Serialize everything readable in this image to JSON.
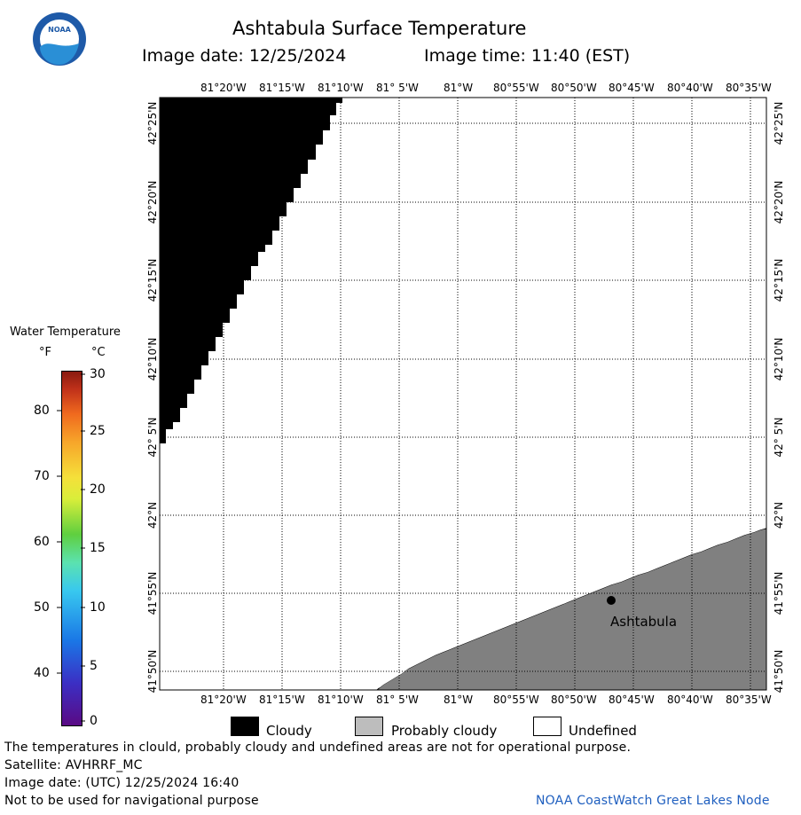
{
  "header": {
    "title": "Ashtabula Surface Temperature",
    "image_date": "Image date: 12/25/2024",
    "image_time": "Image time: 11:40 (EST)"
  },
  "map": {
    "lon_labels": [
      "81°20'W",
      "81°15'W",
      "81°10'W",
      "81° 5'W",
      "81°W",
      "80°55'W",
      "80°50'W",
      "80°45'W",
      "80°40'W",
      "80°35'W"
    ],
    "lat_labels": [
      "42°25'N",
      "42°20'N",
      "42°15'N",
      "42°10'N",
      "42° 5'N",
      "42°N",
      "41°55'N",
      "41°50'N"
    ],
    "place_label": "Ashtabula"
  },
  "colorbar": {
    "title": "Water Temperature",
    "unit_f": "°F",
    "unit_c": "°C",
    "f_ticks": [
      "80",
      "70",
      "60",
      "50",
      "40"
    ],
    "c_ticks": [
      "30",
      "25",
      "20",
      "15",
      "10",
      "5",
      "0"
    ],
    "colors": [
      "#5a0a84",
      "#3b2fc4",
      "#1a77e6",
      "#38c8ef",
      "#5be2b0",
      "#5fcf3f",
      "#d9ee3a",
      "#f5e03a",
      "#f7a62a",
      "#f06a1e",
      "#c0311a",
      "#8a1a10"
    ]
  },
  "legend": {
    "cloudy": "Cloudy",
    "probably_cloudy": "Probably cloudy",
    "undefined": "Undefined",
    "colors": {
      "cloudy": "#000000",
      "probably_cloudy": "#bdbdbd",
      "undefined": "#ffffff"
    }
  },
  "footer": {
    "line1": "The temperatures in clould, probably cloudy and undefined areas are not for operational purpose.",
    "line2": "Satellite: AVHRRF_MC",
    "line3": "Image date: (UTC) 12/25/2024  16:40",
    "line4": "Not to be used for navigational purpose",
    "credit": "NOAA CoastWatch Great Lakes Node"
  },
  "logo": {
    "text": "NOAA"
  }
}
